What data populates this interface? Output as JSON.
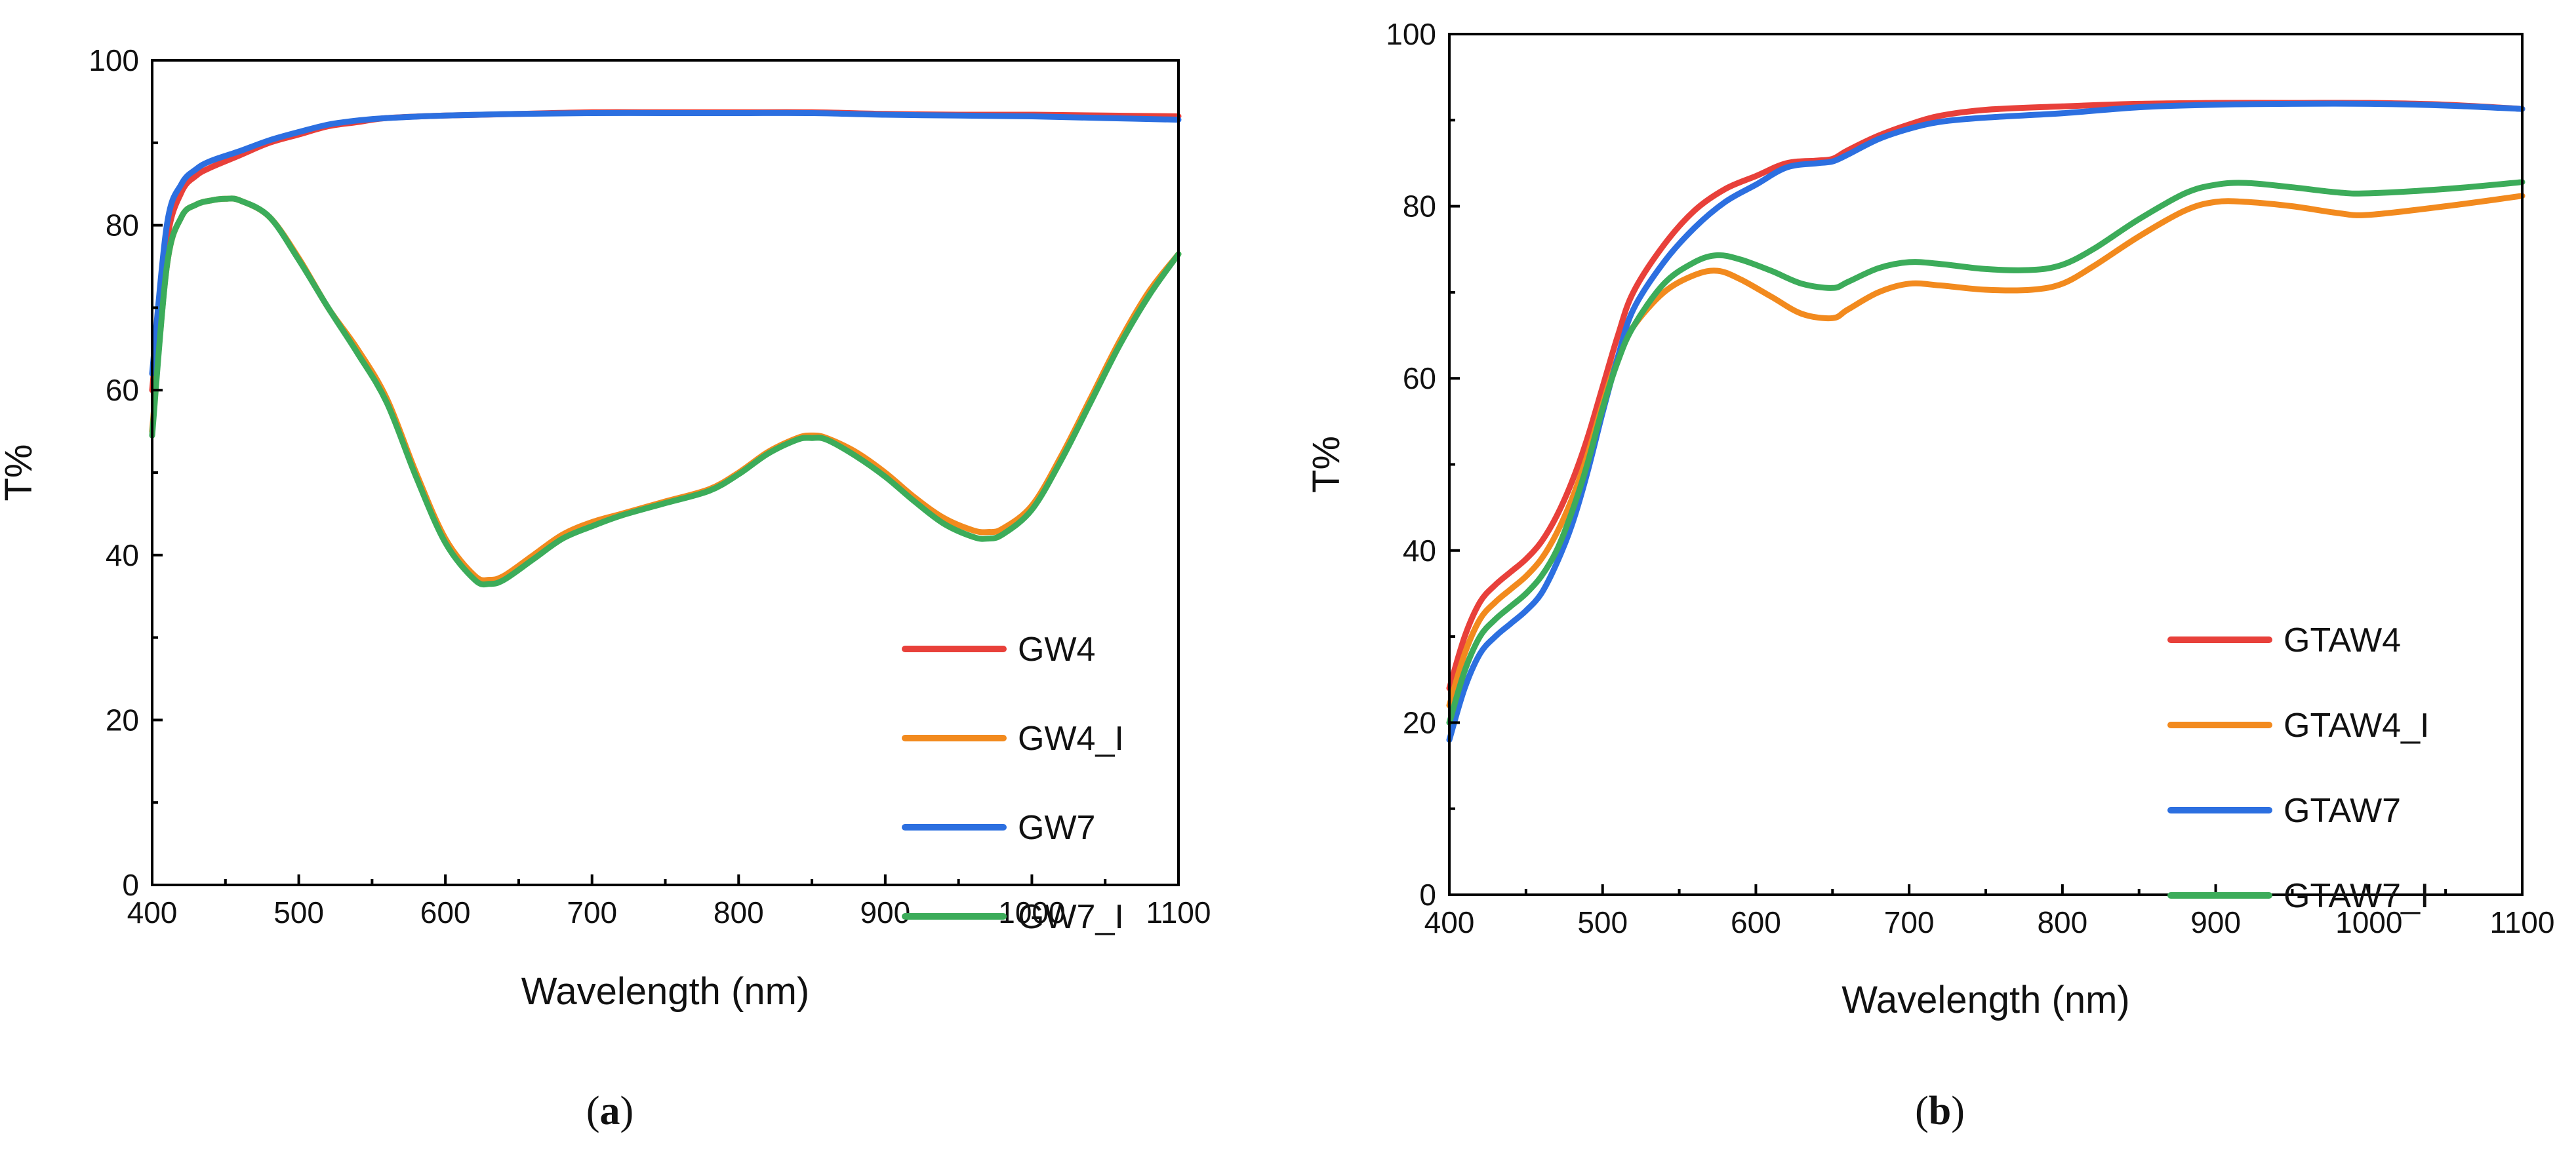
{
  "chart_data": [
    {
      "type": "line",
      "panel": "a",
      "caption_letter": "a",
      "xlabel": "Wavelength (nm)",
      "ylabel": "T%",
      "xlim": [
        400,
        1100
      ],
      "ylim": [
        0,
        100
      ],
      "xticks": [
        400,
        500,
        600,
        700,
        800,
        900,
        1000,
        1100
      ],
      "yticks": [
        0,
        20,
        40,
        60,
        80,
        100
      ],
      "grid": false,
      "legend_position": "bottom-right",
      "series": [
        {
          "name": "GW4",
          "color": "#e8403a",
          "x": [
            400,
            410,
            420,
            430,
            440,
            460,
            480,
            500,
            520,
            540,
            560,
            600,
            650,
            700,
            750,
            800,
            850,
            900,
            950,
            1000,
            1050,
            1100
          ],
          "y": [
            60,
            78,
            84,
            86,
            87,
            88.5,
            90,
            91,
            92,
            92.5,
            93,
            93.3,
            93.5,
            93.7,
            93.7,
            93.7,
            93.7,
            93.5,
            93.4,
            93.4,
            93.3,
            93.2
          ]
        },
        {
          "name": "GW4_I",
          "color": "#f28a1e",
          "x": [
            400,
            410,
            420,
            430,
            440,
            450,
            460,
            480,
            500,
            520,
            540,
            560,
            580,
            600,
            620,
            630,
            640,
            660,
            680,
            700,
            720,
            750,
            780,
            800,
            820,
            840,
            850,
            860,
            880,
            900,
            920,
            940,
            960,
            970,
            980,
            1000,
            1020,
            1040,
            1060,
            1080,
            1100
          ],
          "y": [
            55,
            75,
            81,
            82.5,
            83,
            83.2,
            83,
            81,
            76,
            70,
            65,
            59,
            50,
            42,
            37.5,
            37,
            37.5,
            40,
            42.5,
            44,
            45,
            46.5,
            48,
            50,
            52.5,
            54.2,
            54.5,
            54.2,
            52.5,
            50,
            47,
            44.5,
            43,
            42.8,
            43.2,
            46,
            52,
            59,
            66,
            72,
            76.5
          ]
        },
        {
          "name": "GW7",
          "color": "#2c6fe0",
          "x": [
            400,
            410,
            420,
            430,
            440,
            460,
            480,
            500,
            520,
            540,
            560,
            600,
            650,
            700,
            750,
            800,
            850,
            900,
            950,
            1000,
            1050,
            1100
          ],
          "y": [
            62,
            80,
            85,
            86.8,
            87.8,
            89,
            90.3,
            91.3,
            92.2,
            92.7,
            93,
            93.3,
            93.5,
            93.6,
            93.6,
            93.6,
            93.6,
            93.4,
            93.3,
            93.2,
            93,
            92.8
          ]
        },
        {
          "name": "GW7_I",
          "color": "#3cac5a",
          "x": [
            400,
            410,
            420,
            430,
            440,
            450,
            460,
            480,
            500,
            520,
            540,
            560,
            580,
            600,
            620,
            630,
            640,
            660,
            680,
            700,
            720,
            750,
            780,
            800,
            820,
            840,
            850,
            860,
            880,
            900,
            920,
            940,
            960,
            970,
            980,
            1000,
            1020,
            1040,
            1060,
            1080,
            1100
          ],
          "y": [
            54.5,
            75,
            81,
            82.5,
            83,
            83.2,
            83,
            81,
            75.8,
            70,
            64.5,
            58.5,
            49.5,
            41.5,
            37,
            36.5,
            37,
            39.5,
            42,
            43.5,
            44.8,
            46.3,
            47.8,
            49.8,
            52.3,
            54,
            54.2,
            54,
            52,
            49.5,
            46.5,
            43.8,
            42.2,
            42,
            42.5,
            45.5,
            51.5,
            58.5,
            65.5,
            71.5,
            76.5
          ]
        }
      ]
    },
    {
      "type": "line",
      "panel": "b",
      "caption_letter": "b",
      "xlabel": "Wavelength (nm)",
      "ylabel": "T%",
      "xlim": [
        400,
        1100
      ],
      "ylim": [
        0,
        100
      ],
      "xticks": [
        400,
        500,
        600,
        700,
        800,
        900,
        1000,
        1100
      ],
      "yticks": [
        0,
        20,
        40,
        60,
        80,
        100
      ],
      "grid": false,
      "legend_position": "bottom-right",
      "series": [
        {
          "name": "GTAW4",
          "color": "#e8403a",
          "x": [
            400,
            410,
            420,
            430,
            440,
            450,
            460,
            470,
            480,
            490,
            500,
            510,
            520,
            540,
            560,
            580,
            600,
            620,
            640,
            650,
            660,
            680,
            700,
            720,
            750,
            800,
            850,
            900,
            950,
            1000,
            1050,
            1100
          ],
          "y": [
            24,
            30,
            34,
            36,
            37.5,
            39,
            41,
            44,
            48,
            53,
            59,
            65,
            70,
            75.5,
            79.5,
            82,
            83.5,
            85,
            85.3,
            85.5,
            86.5,
            88.2,
            89.5,
            90.5,
            91.2,
            91.6,
            91.9,
            92,
            92,
            92,
            91.8,
            91.3
          ]
        },
        {
          "name": "GTAW4_I",
          "color": "#f28a1e",
          "x": [
            400,
            410,
            420,
            430,
            440,
            450,
            460,
            470,
            480,
            490,
            500,
            510,
            520,
            540,
            560,
            575,
            590,
            610,
            630,
            650,
            660,
            680,
            700,
            720,
            750,
            780,
            800,
            820,
            850,
            880,
            900,
            920,
            950,
            980,
            1000,
            1050,
            1100
          ],
          "y": [
            22,
            28,
            32,
            34,
            35.5,
            37,
            39,
            42,
            46,
            51,
            57,
            62.5,
            66,
            70,
            72,
            72.5,
            71.5,
            69.5,
            67.5,
            67,
            68,
            70,
            71,
            70.8,
            70.3,
            70.3,
            71,
            73,
            76.5,
            79.5,
            80.5,
            80.5,
            80,
            79.2,
            79,
            80,
            81.2
          ]
        },
        {
          "name": "GTAW7",
          "color": "#2c6fe0",
          "x": [
            400,
            410,
            420,
            430,
            440,
            450,
            460,
            470,
            480,
            490,
            500,
            510,
            520,
            540,
            560,
            580,
            600,
            620,
            640,
            650,
            660,
            680,
            700,
            720,
            750,
            800,
            850,
            900,
            950,
            1000,
            1050,
            1100
          ],
          "y": [
            18,
            24,
            28,
            30,
            31.5,
            33,
            35,
            38.5,
            43,
            49,
            56,
            62.5,
            68,
            73.5,
            77.5,
            80.5,
            82.5,
            84.5,
            85,
            85.2,
            86,
            87.8,
            89,
            89.8,
            90.3,
            90.8,
            91.5,
            91.8,
            91.9,
            91.9,
            91.7,
            91.3
          ]
        },
        {
          "name": "GTAW7_I",
          "color": "#3cac5a",
          "x": [
            400,
            410,
            420,
            430,
            440,
            450,
            460,
            470,
            480,
            490,
            500,
            510,
            520,
            540,
            560,
            575,
            590,
            610,
            630,
            650,
            660,
            680,
            700,
            720,
            750,
            780,
            800,
            820,
            850,
            880,
            900,
            920,
            950,
            980,
            1000,
            1050,
            1100
          ],
          "y": [
            20,
            26,
            30,
            32,
            33.5,
            35,
            37,
            40,
            44.5,
            50,
            56.5,
            62,
            66,
            71,
            73.5,
            74.3,
            73.8,
            72.5,
            71,
            70.5,
            71.2,
            72.8,
            73.5,
            73.3,
            72.7,
            72.6,
            73.2,
            75,
            78.5,
            81.5,
            82.5,
            82.7,
            82.2,
            81.6,
            81.5,
            82,
            82.8
          ]
        }
      ]
    }
  ]
}
